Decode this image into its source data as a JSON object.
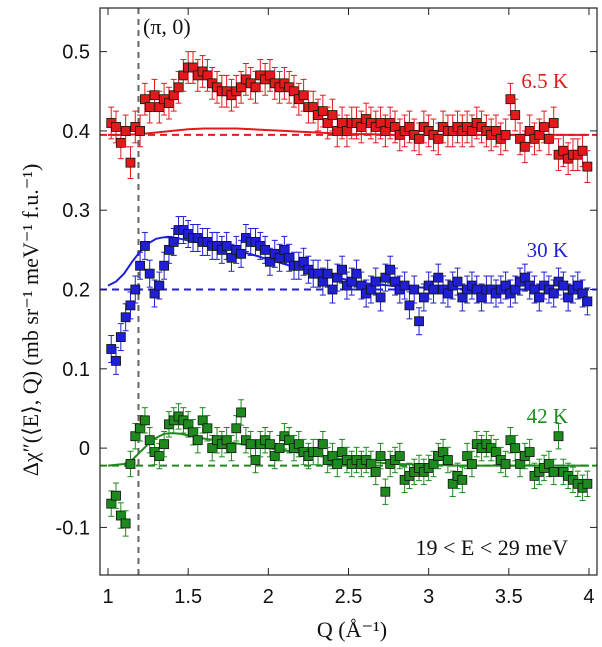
{
  "chart_data": {
    "type": "scatter",
    "xlabel": "Q (Å⁻¹)",
    "ylabel": "Δχ″(⟨E⟩, Q) (mb sr⁻¹ meV⁻¹ f.u.⁻¹)",
    "xlim": [
      0.95,
      4.05
    ],
    "ylim": [
      -0.16,
      0.555
    ],
    "xticks": [
      "1",
      "1.5",
      "2",
      "2.5",
      "3",
      "3.5",
      "4"
    ],
    "yticks": [
      "-0.1",
      "0",
      "0.1",
      "0.2",
      "0.3",
      "0.4",
      "0.5"
    ],
    "grid": false,
    "vline": {
      "x": 1.19,
      "label": "(π, 0)"
    },
    "energy_range": "19 < E < 29 meV",
    "series": [
      {
        "name": "6.5 K",
        "color": "#e31a1c",
        "baseline": 0.395,
        "x": [
          1.02,
          1.05,
          1.08,
          1.11,
          1.14,
          1.17,
          1.2,
          1.23,
          1.26,
          1.29,
          1.32,
          1.35,
          1.38,
          1.41,
          1.44,
          1.47,
          1.5,
          1.53,
          1.56,
          1.59,
          1.62,
          1.65,
          1.68,
          1.71,
          1.74,
          1.77,
          1.8,
          1.83,
          1.86,
          1.89,
          1.92,
          1.95,
          1.98,
          2.01,
          2.04,
          2.07,
          2.1,
          2.13,
          2.16,
          2.19,
          2.22,
          2.25,
          2.28,
          2.31,
          2.34,
          2.37,
          2.4,
          2.43,
          2.46,
          2.49,
          2.52,
          2.55,
          2.58,
          2.61,
          2.64,
          2.67,
          2.7,
          2.73,
          2.76,
          2.79,
          2.82,
          2.85,
          2.88,
          2.91,
          2.94,
          2.97,
          3.0,
          3.03,
          3.06,
          3.09,
          3.12,
          3.15,
          3.18,
          3.21,
          3.24,
          3.27,
          3.3,
          3.33,
          3.36,
          3.39,
          3.42,
          3.45,
          3.48,
          3.51,
          3.54,
          3.57,
          3.6,
          3.63,
          3.66,
          3.69,
          3.72,
          3.75,
          3.78,
          3.81,
          3.84,
          3.87,
          3.9,
          3.93,
          3.96,
          3.99
        ],
        "y": [
          0.41,
          0.405,
          0.385,
          0.4,
          0.36,
          0.405,
          0.4,
          0.44,
          0.43,
          0.445,
          0.43,
          0.44,
          0.435,
          0.445,
          0.455,
          0.47,
          0.48,
          0.48,
          0.47,
          0.475,
          0.47,
          0.46,
          0.455,
          0.45,
          0.45,
          0.445,
          0.45,
          0.455,
          0.465,
          0.46,
          0.455,
          0.47,
          0.465,
          0.47,
          0.46,
          0.455,
          0.46,
          0.455,
          0.45,
          0.44,
          0.445,
          0.43,
          0.43,
          0.42,
          0.425,
          0.41,
          0.42,
          0.4,
          0.41,
          0.4,
          0.41,
          0.41,
          0.405,
          0.415,
          0.41,
          0.405,
          0.41,
          0.4,
          0.41,
          0.405,
          0.395,
          0.4,
          0.405,
          0.395,
          0.39,
          0.405,
          0.4,
          0.395,
          0.39,
          0.405,
          0.4,
          0.4,
          0.405,
          0.4,
          0.405,
          0.4,
          0.41,
          0.405,
          0.4,
          0.395,
          0.4,
          0.39,
          0.395,
          0.44,
          0.42,
          0.39,
          0.38,
          0.4,
          0.39,
          0.395,
          0.405,
          0.39,
          0.41,
          0.37,
          0.375,
          0.365,
          0.37,
          0.37,
          0.375,
          0.355
        ],
        "err": 0.02,
        "fit_x": [
          1.0,
          1.1,
          1.2,
          1.3,
          1.4,
          1.5,
          1.6,
          1.7,
          1.8,
          1.9,
          2.0,
          2.1,
          2.2,
          2.3,
          2.4,
          2.5,
          2.6,
          2.8,
          3.0,
          3.2,
          3.4,
          3.6,
          3.8,
          4.0
        ],
        "fit_y": [
          0.395,
          0.395,
          0.396,
          0.398,
          0.4,
          0.402,
          0.403,
          0.403,
          0.403,
          0.402,
          0.401,
          0.4,
          0.399,
          0.398,
          0.397,
          0.396,
          0.396,
          0.395,
          0.395,
          0.395,
          0.395,
          0.395,
          0.395,
          0.395
        ]
      },
      {
        "name": "30 K",
        "color": "#1f1fd6",
        "baseline": 0.2,
        "x": [
          1.02,
          1.05,
          1.08,
          1.11,
          1.14,
          1.17,
          1.2,
          1.23,
          1.26,
          1.29,
          1.32,
          1.35,
          1.38,
          1.41,
          1.44,
          1.47,
          1.5,
          1.53,
          1.56,
          1.59,
          1.62,
          1.65,
          1.68,
          1.71,
          1.74,
          1.77,
          1.8,
          1.83,
          1.86,
          1.89,
          1.92,
          1.95,
          1.98,
          2.01,
          2.04,
          2.07,
          2.1,
          2.13,
          2.16,
          2.19,
          2.22,
          2.25,
          2.28,
          2.31,
          2.34,
          2.37,
          2.4,
          2.43,
          2.46,
          2.49,
          2.52,
          2.55,
          2.58,
          2.61,
          2.64,
          2.67,
          2.7,
          2.73,
          2.76,
          2.79,
          2.82,
          2.85,
          2.88,
          2.91,
          2.94,
          2.97,
          3.0,
          3.03,
          3.06,
          3.09,
          3.12,
          3.15,
          3.18,
          3.21,
          3.24,
          3.27,
          3.3,
          3.33,
          3.36,
          3.39,
          3.42,
          3.45,
          3.48,
          3.51,
          3.54,
          3.57,
          3.6,
          3.63,
          3.66,
          3.69,
          3.72,
          3.75,
          3.78,
          3.81,
          3.84,
          3.87,
          3.9,
          3.93,
          3.96,
          3.99
        ],
        "y": [
          0.125,
          0.11,
          0.14,
          0.165,
          0.18,
          0.2,
          0.23,
          0.255,
          0.22,
          0.195,
          0.205,
          0.23,
          0.25,
          0.26,
          0.275,
          0.275,
          0.27,
          0.265,
          0.265,
          0.26,
          0.26,
          0.255,
          0.255,
          0.25,
          0.255,
          0.24,
          0.25,
          0.245,
          0.265,
          0.26,
          0.26,
          0.255,
          0.25,
          0.235,
          0.245,
          0.24,
          0.25,
          0.24,
          0.23,
          0.23,
          0.235,
          0.225,
          0.22,
          0.22,
          0.21,
          0.22,
          0.2,
          0.215,
          0.225,
          0.205,
          0.21,
          0.22,
          0.205,
          0.195,
          0.2,
          0.21,
          0.19,
          0.215,
          0.225,
          0.21,
          0.2,
          0.205,
          0.18,
          0.2,
          0.16,
          0.19,
          0.205,
          0.2,
          0.215,
          0.2,
          0.195,
          0.205,
          0.21,
          0.19,
          0.2,
          0.205,
          0.2,
          0.19,
          0.2,
          0.2,
          0.195,
          0.2,
          0.205,
          0.195,
          0.2,
          0.21,
          0.215,
          0.205,
          0.2,
          0.19,
          0.205,
          0.2,
          0.195,
          0.21,
          0.205,
          0.19,
          0.2,
          0.205,
          0.195,
          0.185
        ],
        "err": 0.017,
        "fit_x": [
          1.0,
          1.05,
          1.1,
          1.15,
          1.2,
          1.25,
          1.3,
          1.35,
          1.4,
          1.45,
          1.5,
          1.6,
          1.7,
          1.8,
          1.9,
          2.0,
          2.1,
          2.2,
          2.3,
          2.4,
          2.5,
          2.6,
          2.8,
          3.0,
          3.2,
          3.4,
          3.6,
          3.8,
          4.0
        ],
        "fit_y": [
          0.205,
          0.21,
          0.22,
          0.235,
          0.248,
          0.258,
          0.264,
          0.266,
          0.266,
          0.264,
          0.262,
          0.258,
          0.254,
          0.249,
          0.244,
          0.238,
          0.232,
          0.226,
          0.221,
          0.216,
          0.212,
          0.208,
          0.204,
          0.202,
          0.201,
          0.2,
          0.2,
          0.2,
          0.2
        ]
      },
      {
        "name": "42 K",
        "color": "#1e8a1e",
        "baseline": -0.022,
        "x": [
          1.02,
          1.05,
          1.08,
          1.11,
          1.14,
          1.17,
          1.2,
          1.23,
          1.26,
          1.29,
          1.32,
          1.35,
          1.38,
          1.41,
          1.44,
          1.47,
          1.5,
          1.53,
          1.56,
          1.59,
          1.62,
          1.65,
          1.68,
          1.71,
          1.74,
          1.77,
          1.8,
          1.83,
          1.86,
          1.89,
          1.92,
          1.95,
          1.98,
          2.01,
          2.04,
          2.07,
          2.1,
          2.13,
          2.16,
          2.19,
          2.22,
          2.25,
          2.28,
          2.31,
          2.34,
          2.37,
          2.4,
          2.43,
          2.46,
          2.49,
          2.52,
          2.55,
          2.58,
          2.61,
          2.64,
          2.67,
          2.7,
          2.73,
          2.76,
          2.79,
          2.82,
          2.85,
          2.88,
          2.91,
          2.94,
          2.97,
          3.0,
          3.03,
          3.06,
          3.09,
          3.12,
          3.15,
          3.18,
          3.21,
          3.24,
          3.27,
          3.3,
          3.33,
          3.36,
          3.39,
          3.42,
          3.45,
          3.48,
          3.51,
          3.54,
          3.57,
          3.6,
          3.63,
          3.66,
          3.69,
          3.72,
          3.75,
          3.78,
          3.81,
          3.84,
          3.87,
          3.9,
          3.93,
          3.96,
          3.99
        ],
        "y": [
          -0.07,
          -0.06,
          -0.085,
          -0.095,
          -0.02,
          0.015,
          0.025,
          0.035,
          0.01,
          -0.005,
          -0.01,
          0.005,
          0.03,
          0.035,
          0.04,
          0.035,
          0.03,
          0.02,
          0.01,
          0.035,
          0.025,
          0.0,
          0.01,
          0.005,
          0.01,
          0.0,
          0.025,
          0.045,
          0.01,
          0.005,
          -0.015,
          0.005,
          0.01,
          0.005,
          -0.01,
          0.0,
          0.015,
          0.01,
          0.0,
          0.005,
          -0.005,
          -0.01,
          -0.005,
          -0.005,
          0.005,
          -0.015,
          -0.01,
          -0.02,
          -0.005,
          -0.015,
          -0.02,
          -0.015,
          -0.02,
          -0.015,
          -0.02,
          -0.03,
          -0.01,
          -0.055,
          -0.02,
          -0.015,
          -0.01,
          -0.04,
          -0.035,
          -0.03,
          -0.025,
          -0.03,
          -0.025,
          -0.02,
          -0.01,
          -0.005,
          -0.015,
          -0.045,
          -0.035,
          -0.04,
          -0.01,
          -0.02,
          0.005,
          0.0,
          0.005,
          0.0,
          -0.005,
          -0.015,
          -0.02,
          0.01,
          0.0,
          -0.02,
          -0.01,
          -0.005,
          -0.035,
          -0.03,
          -0.025,
          -0.02,
          -0.03,
          0.015,
          -0.03,
          -0.035,
          -0.04,
          -0.045,
          -0.05,
          -0.045
        ],
        "err": 0.016,
        "fit_x": [
          1.0,
          1.1,
          1.15,
          1.2,
          1.25,
          1.3,
          1.35,
          1.4,
          1.45,
          1.5,
          1.6,
          1.7,
          1.8,
          1.9,
          2.0,
          2.1,
          2.2,
          2.3,
          2.4,
          2.5,
          2.6,
          2.8,
          3.0,
          3.2,
          3.4,
          3.6,
          3.8,
          4.0
        ],
        "fit_y": [
          -0.022,
          -0.02,
          -0.015,
          -0.005,
          0.005,
          0.013,
          0.018,
          0.019,
          0.018,
          0.016,
          0.012,
          0.009,
          0.006,
          0.003,
          0.0,
          -0.003,
          -0.006,
          -0.009,
          -0.012,
          -0.015,
          -0.017,
          -0.02,
          -0.021,
          -0.022,
          -0.022,
          -0.022,
          -0.022,
          -0.022
        ]
      }
    ]
  }
}
